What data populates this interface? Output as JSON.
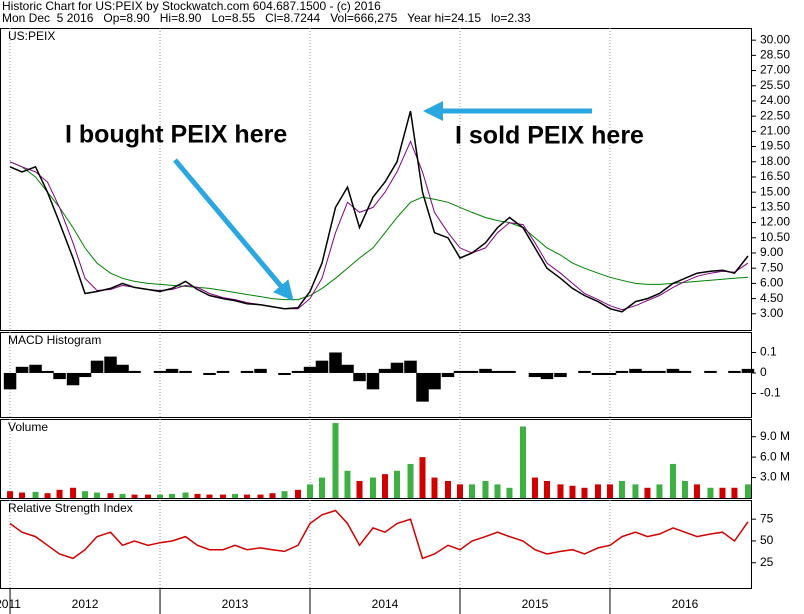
{
  "header": {
    "title": "Historic Chart for US:PEIX by Stockwatch.com 604.687.1500 - (c) 2016",
    "subtitle": "Mon Dec  5 2016   Op=8.90   Hi=8.90   Lo=8.55   Cl=8.7244   Vol=666,275   Year hi=24.15   lo=2.33"
  },
  "chart_data": [
    {
      "type": "line",
      "title": "US:PEIX",
      "annotations": [
        "I bought PEIX here",
        "I sold PEIX here"
      ],
      "x": [
        2012.0,
        2012.08,
        2012.17,
        2012.25,
        2012.33,
        2012.42,
        2012.5,
        2012.58,
        2012.67,
        2012.75,
        2012.83,
        2012.92,
        2013.0,
        2013.08,
        2013.17,
        2013.25,
        2013.33,
        2013.42,
        2013.5,
        2013.58,
        2013.67,
        2013.75,
        2013.83,
        2013.92,
        2014.0,
        2014.08,
        2014.17,
        2014.25,
        2014.33,
        2014.42,
        2014.5,
        2014.58,
        2014.67,
        2014.75,
        2014.83,
        2014.92,
        2015.0,
        2015.08,
        2015.17,
        2015.25,
        2015.33,
        2015.42,
        2015.5,
        2015.58,
        2015.67,
        2015.75,
        2015.83,
        2015.92,
        2016.0,
        2016.08,
        2016.17,
        2016.25,
        2016.33,
        2016.42,
        2016.5,
        2016.58,
        2016.67,
        2016.75,
        2016.83,
        2016.92
      ],
      "xlim": [
        2011.933,
        2016.947
      ],
      "ylim": [
        1.4,
        31.2
      ],
      "log": false,
      "yticks": [
        {
          "value": 30,
          "label": "30.00"
        },
        {
          "value": 28.5,
          "label": "28.50"
        },
        {
          "value": 27,
          "label": "27.00"
        },
        {
          "value": 25.5,
          "label": "25.50"
        },
        {
          "value": 24,
          "label": "24.00"
        },
        {
          "value": 22.5,
          "label": "22.50"
        },
        {
          "value": 21,
          "label": "21.00"
        },
        {
          "value": 19.5,
          "label": "19.50"
        },
        {
          "value": 18,
          "label": "18.00"
        },
        {
          "value": 16.5,
          "label": "16.50"
        },
        {
          "value": 15,
          "label": "15.00"
        },
        {
          "value": 13.5,
          "label": "13.50"
        },
        {
          "value": 12,
          "label": "12.00"
        },
        {
          "value": 10.5,
          "label": "10.50"
        },
        {
          "value": 9,
          "label": "9.00"
        },
        {
          "value": 7.5,
          "label": "7.50"
        },
        {
          "value": 6,
          "label": "6.00"
        },
        {
          "value": 4.5,
          "label": "4.50"
        },
        {
          "value": 3,
          "label": "3.00"
        }
      ],
      "series": [
        {
          "color": "#008000",
          "values": [
            18,
            17.5,
            16.5,
            15,
            13.5,
            11.5,
            9.5,
            8,
            7,
            6.5,
            6.2,
            6,
            5.9,
            5.8,
            5.7,
            5.6,
            5.5,
            5.3,
            5.1,
            4.9,
            4.7,
            4.5,
            4.4,
            4.4,
            4.8,
            5.5,
            6.5,
            7.5,
            8.5,
            9.5,
            11,
            12.5,
            14,
            14.5,
            14.3,
            14,
            13.5,
            13,
            12.5,
            12.2,
            12,
            11.5,
            10.5,
            9.5,
            8.8,
            8,
            7.5,
            7,
            6.6,
            6.3,
            6,
            5.9,
            5.9,
            6,
            6.1,
            6.2,
            6.3,
            6.4,
            6.5,
            6.6
          ]
        },
        {
          "color": "#800080",
          "values": [
            18,
            17.5,
            17,
            16,
            13.5,
            10,
            6.5,
            5.3,
            5.4,
            5.8,
            5.6,
            5.4,
            5.3,
            5.4,
            5.8,
            5.6,
            5,
            4.6,
            4.4,
            4.1,
            3.9,
            3.7,
            3.5,
            3.5,
            4.5,
            6.5,
            11,
            14,
            13,
            13.5,
            15,
            17,
            20,
            17,
            13,
            11,
            9.5,
            9,
            9.5,
            11,
            12,
            11.8,
            10,
            8,
            7,
            6,
            5,
            4.4,
            3.8,
            3.4,
            3.8,
            4.3,
            4.8,
            5.6,
            6.2,
            6.7,
            7,
            7.2,
            7.1,
            8
          ]
        },
        {
          "color": "#000000",
          "values": [
            17.5,
            17,
            17.5,
            15,
            12,
            8.5,
            5,
            5.2,
            5.5,
            6,
            5.6,
            5.4,
            5.2,
            5.5,
            6.2,
            5.4,
            4.8,
            4.5,
            4.3,
            4,
            3.9,
            3.7,
            3.5,
            3.6,
            5.2,
            8,
            13.5,
            15.5,
            11.5,
            14.5,
            16,
            18,
            23,
            15,
            11,
            10.5,
            8.5,
            9,
            10,
            11.5,
            12.5,
            11.5,
            9.5,
            7.5,
            6.5,
            5.5,
            4.8,
            4.2,
            3.5,
            3.2,
            4.2,
            4.5,
            5,
            6,
            6.5,
            7,
            7.2,
            7.3,
            7,
            8.7
          ]
        }
      ]
    },
    {
      "type": "bar",
      "title": "MACD Histogram",
      "color": "#000000",
      "ylim": [
        -0.215,
        0.2
      ],
      "yticks": [
        0.1,
        0,
        -0.1
      ],
      "values": [
        -0.08,
        0.03,
        0.04,
        0.01,
        -0.03,
        -0.06,
        -0.02,
        0.06,
        0.08,
        0.04,
        0.01,
        0,
        0.01,
        0.02,
        0.01,
        0,
        -0.01,
        0.01,
        0,
        0.01,
        0.02,
        0,
        -0.01,
        0.01,
        0.03,
        0.06,
        0.1,
        0.04,
        -0.04,
        -0.08,
        0.02,
        0.05,
        0.06,
        -0.14,
        -0.08,
        -0.02,
        0.01,
        0.01,
        0.02,
        0.01,
        0.01,
        0,
        -0.02,
        -0.03,
        -0.02,
        0,
        0.01,
        -0.01,
        -0.01,
        0.01,
        0.02,
        0.01,
        0.01,
        0.02,
        0.01,
        0,
        0.01,
        0,
        0.01,
        0.02
      ]
    },
    {
      "type": "bar",
      "title": "Volume",
      "ylim": [
        0,
        11600000
      ],
      "yticks": [
        {
          "value": 9000000,
          "label": "9.0 M"
        },
        {
          "value": 6000000,
          "label": "6.0 M"
        },
        {
          "value": 3000000,
          "label": "3.0 M"
        }
      ],
      "values": [
        1000000,
        800000,
        900000,
        700000,
        1200000,
        1500000,
        1000000,
        800000,
        700000,
        600000,
        500000,
        500000,
        500000,
        600000,
        800000,
        600000,
        500000,
        500000,
        600000,
        500000,
        500000,
        700000,
        1000000,
        1200000,
        2000000,
        3000000,
        11000000,
        4000000,
        2500000,
        3000000,
        3500000,
        4000000,
        5000000,
        6000000,
        3000000,
        2500000,
        2000000,
        2000000,
        2500000,
        2000000,
        1500000,
        10500000,
        3000000,
        2500000,
        2000000,
        1800000,
        1500000,
        2000000,
        2000000,
        2500000,
        2000000,
        1500000,
        2000000,
        5000000,
        2500000,
        2000000,
        1500000,
        1500000,
        1500000,
        2000000
      ],
      "colors": [
        "#d00000",
        "#d00000",
        "#3cb043",
        "#d00000",
        "#d00000",
        "#d00000",
        "#3cb043",
        "#3cb043",
        "#d00000",
        "#3cb043",
        "#d00000",
        "#d00000",
        "#3cb043",
        "#3cb043",
        "#3cb043",
        "#d00000",
        "#d00000",
        "#d00000",
        "#3cb043",
        "#d00000",
        "#d00000",
        "#d00000",
        "#3cb043",
        "#d00000",
        "#3cb043",
        "#3cb043",
        "#3cb043",
        "#3cb043",
        "#d00000",
        "#3cb043",
        "#d00000",
        "#3cb043",
        "#3cb043",
        "#d00000",
        "#d00000",
        "#d00000",
        "#d00000",
        "#3cb043",
        "#3cb043",
        "#3cb043",
        "#3cb043",
        "#3cb043",
        "#d00000",
        "#d00000",
        "#d00000",
        "#d00000",
        "#d00000",
        "#d00000",
        "#d00000",
        "#3cb043",
        "#3cb043",
        "#d00000",
        "#3cb043",
        "#3cb043",
        "#3cb043",
        "#d00000",
        "#3cb043",
        "#d00000",
        "#d00000",
        "#3cb043"
      ]
    },
    {
      "type": "line",
      "title": "Relative Strength Index",
      "ylim": [
        -4,
        97
      ],
      "yticks": [
        75,
        50,
        25
      ],
      "xticks": [
        2011,
        2012,
        2013,
        2014,
        2015,
        2016
      ],
      "series": [
        {
          "color": "#d00000",
          "values": [
            70,
            60,
            55,
            45,
            35,
            30,
            40,
            55,
            60,
            45,
            50,
            45,
            48,
            50,
            55,
            45,
            40,
            40,
            45,
            40,
            42,
            40,
            38,
            45,
            70,
            80,
            85,
            70,
            45,
            65,
            60,
            70,
            75,
            30,
            35,
            45,
            40,
            50,
            55,
            60,
            55,
            50,
            40,
            35,
            38,
            40,
            35,
            42,
            45,
            55,
            60,
            55,
            58,
            65,
            60,
            55,
            58,
            60,
            50,
            72
          ]
        }
      ]
    }
  ]
}
